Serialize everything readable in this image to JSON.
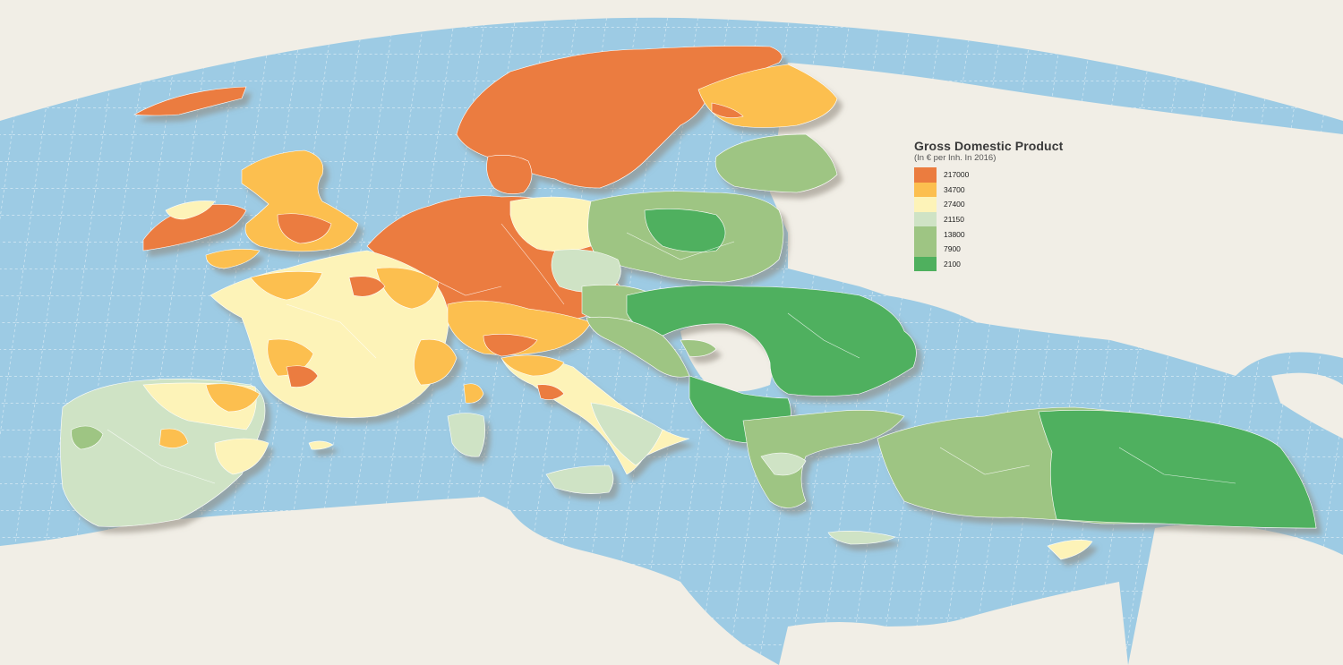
{
  "legend": {
    "title": "Gross Domestic Product",
    "subtitle": "(In € per Inh. In 2016)",
    "classes": [
      {
        "label": "217000",
        "color": "#eb7c3f"
      },
      {
        "label": "34700",
        "color": "#fcbf4f"
      },
      {
        "label": "27400",
        "color": "#fdf3b8"
      },
      {
        "label": "21150",
        "color": "#cfe3c5"
      },
      {
        "label": "13800",
        "color": "#9ec583"
      },
      {
        "label": "7900",
        "color": "#9ec583"
      },
      {
        "label": "2100",
        "color": "#4fb05e"
      }
    ]
  },
  "colors": {
    "sea": "#9dcbe4",
    "land_background": "#f1eee6",
    "non_data_land": "#f1eee6",
    "graticule": "#ffffff",
    "shadow": "#a9a49a"
  }
}
